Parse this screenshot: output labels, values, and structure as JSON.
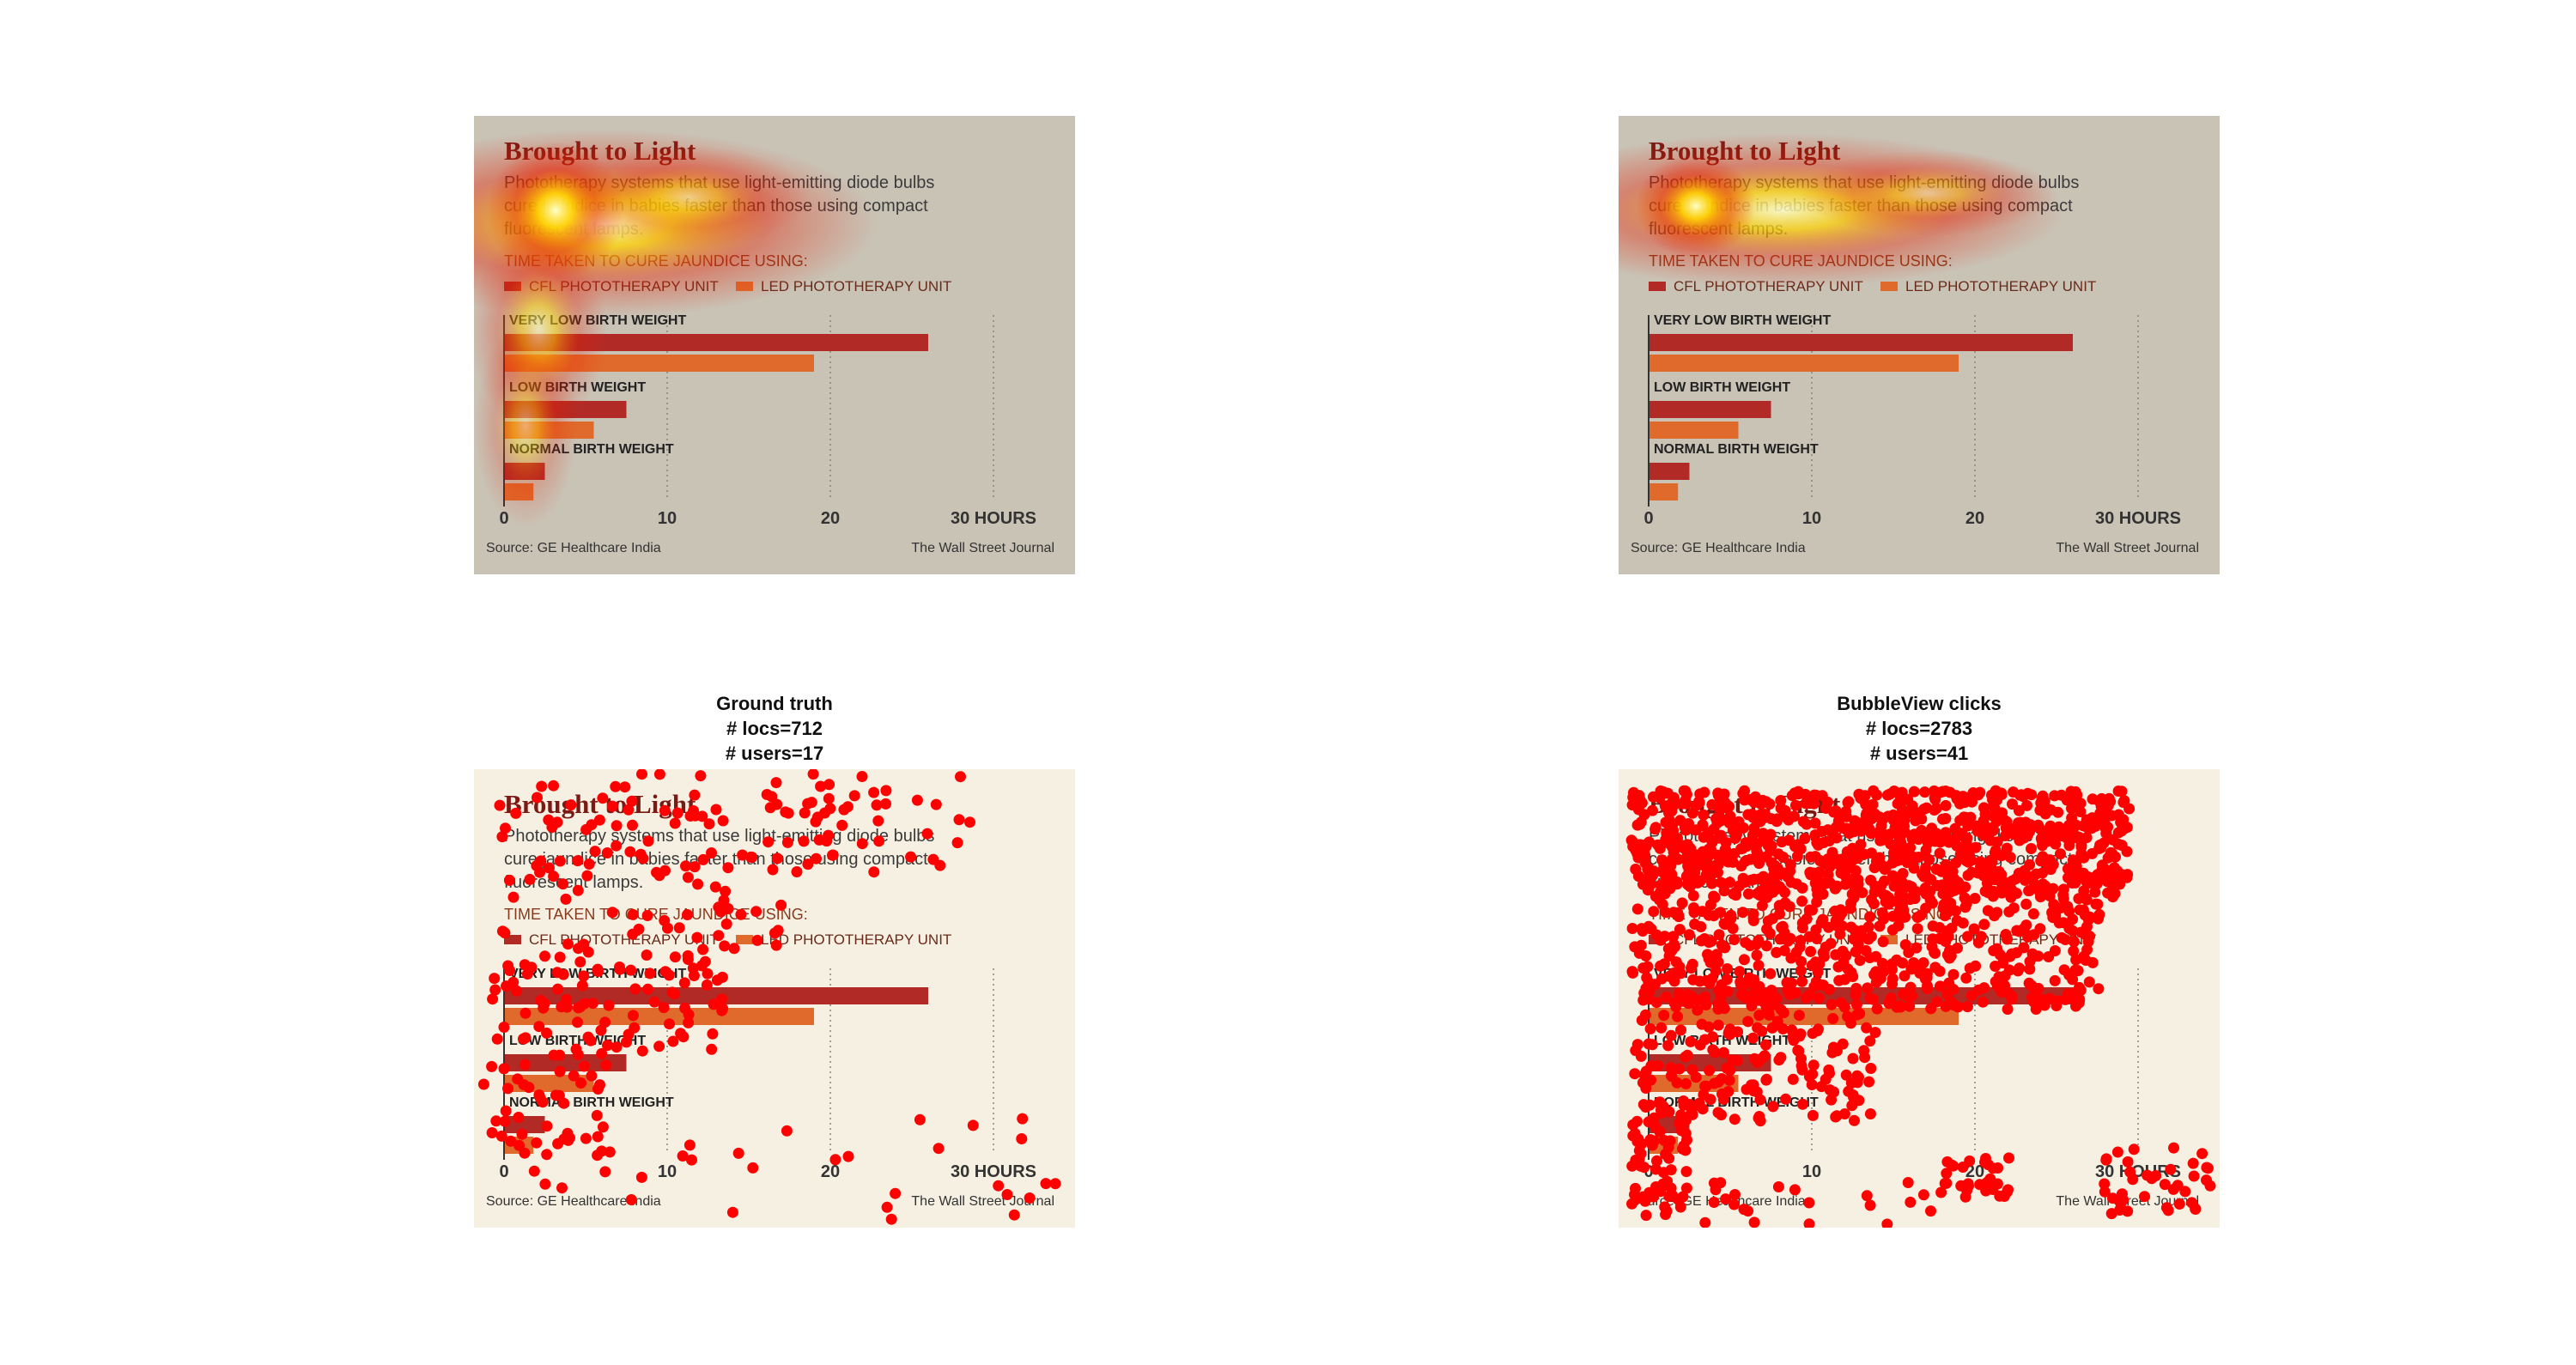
{
  "chart_data": {
    "type": "bar",
    "title": "Brought to Light",
    "subtitle_lines": [
      "Phototherapy systems that use light-emitting diode bulbs",
      "cure jaundice in babies faster than those using compact",
      "fluorescent lamps."
    ],
    "axis_title": "TIME TAKEN TO CURE JAUNDICE USING:",
    "legend_position": "top-left",
    "series": [
      {
        "name": "CFL PHOTOTHERAPY UNIT",
        "color": "#b22a26",
        "values": [
          26,
          7.5,
          2.5
        ]
      },
      {
        "name": "LED PHOTOTHERAPY UNIT",
        "color": "#e06a2b",
        "values": [
          19,
          5.5,
          1.8
        ]
      }
    ],
    "categories": [
      "VERY LOW BIRTH WEIGHT",
      "LOW BIRTH WEIGHT",
      "NORMAL BIRTH WEIGHT"
    ],
    "xlim": [
      0,
      30
    ],
    "x_ticks": [
      {
        "value": 0,
        "label": "0"
      },
      {
        "value": 10,
        "label": "10"
      },
      {
        "value": 20,
        "label": "20"
      },
      {
        "value": 30,
        "label": "30 HOURS"
      }
    ],
    "source": "Source: GE Healthcare India",
    "credit": "The Wall Street Journal"
  },
  "panels": {
    "ground_truth": {
      "title": "Ground truth",
      "locs": "# locs=712",
      "users": "# users=17"
    },
    "bubbleview": {
      "title": "BubbleView clicks",
      "locs": "# locs=2783",
      "users": "# users=41"
    }
  },
  "colors": {
    "heat_background": "#c9c3b6",
    "dots_background": "#f6f0e2",
    "click_dot": "#ff0000",
    "heat_core": "#ffffc8",
    "heat_mid": "#ffd200",
    "heat_outer": "#e61e00"
  }
}
